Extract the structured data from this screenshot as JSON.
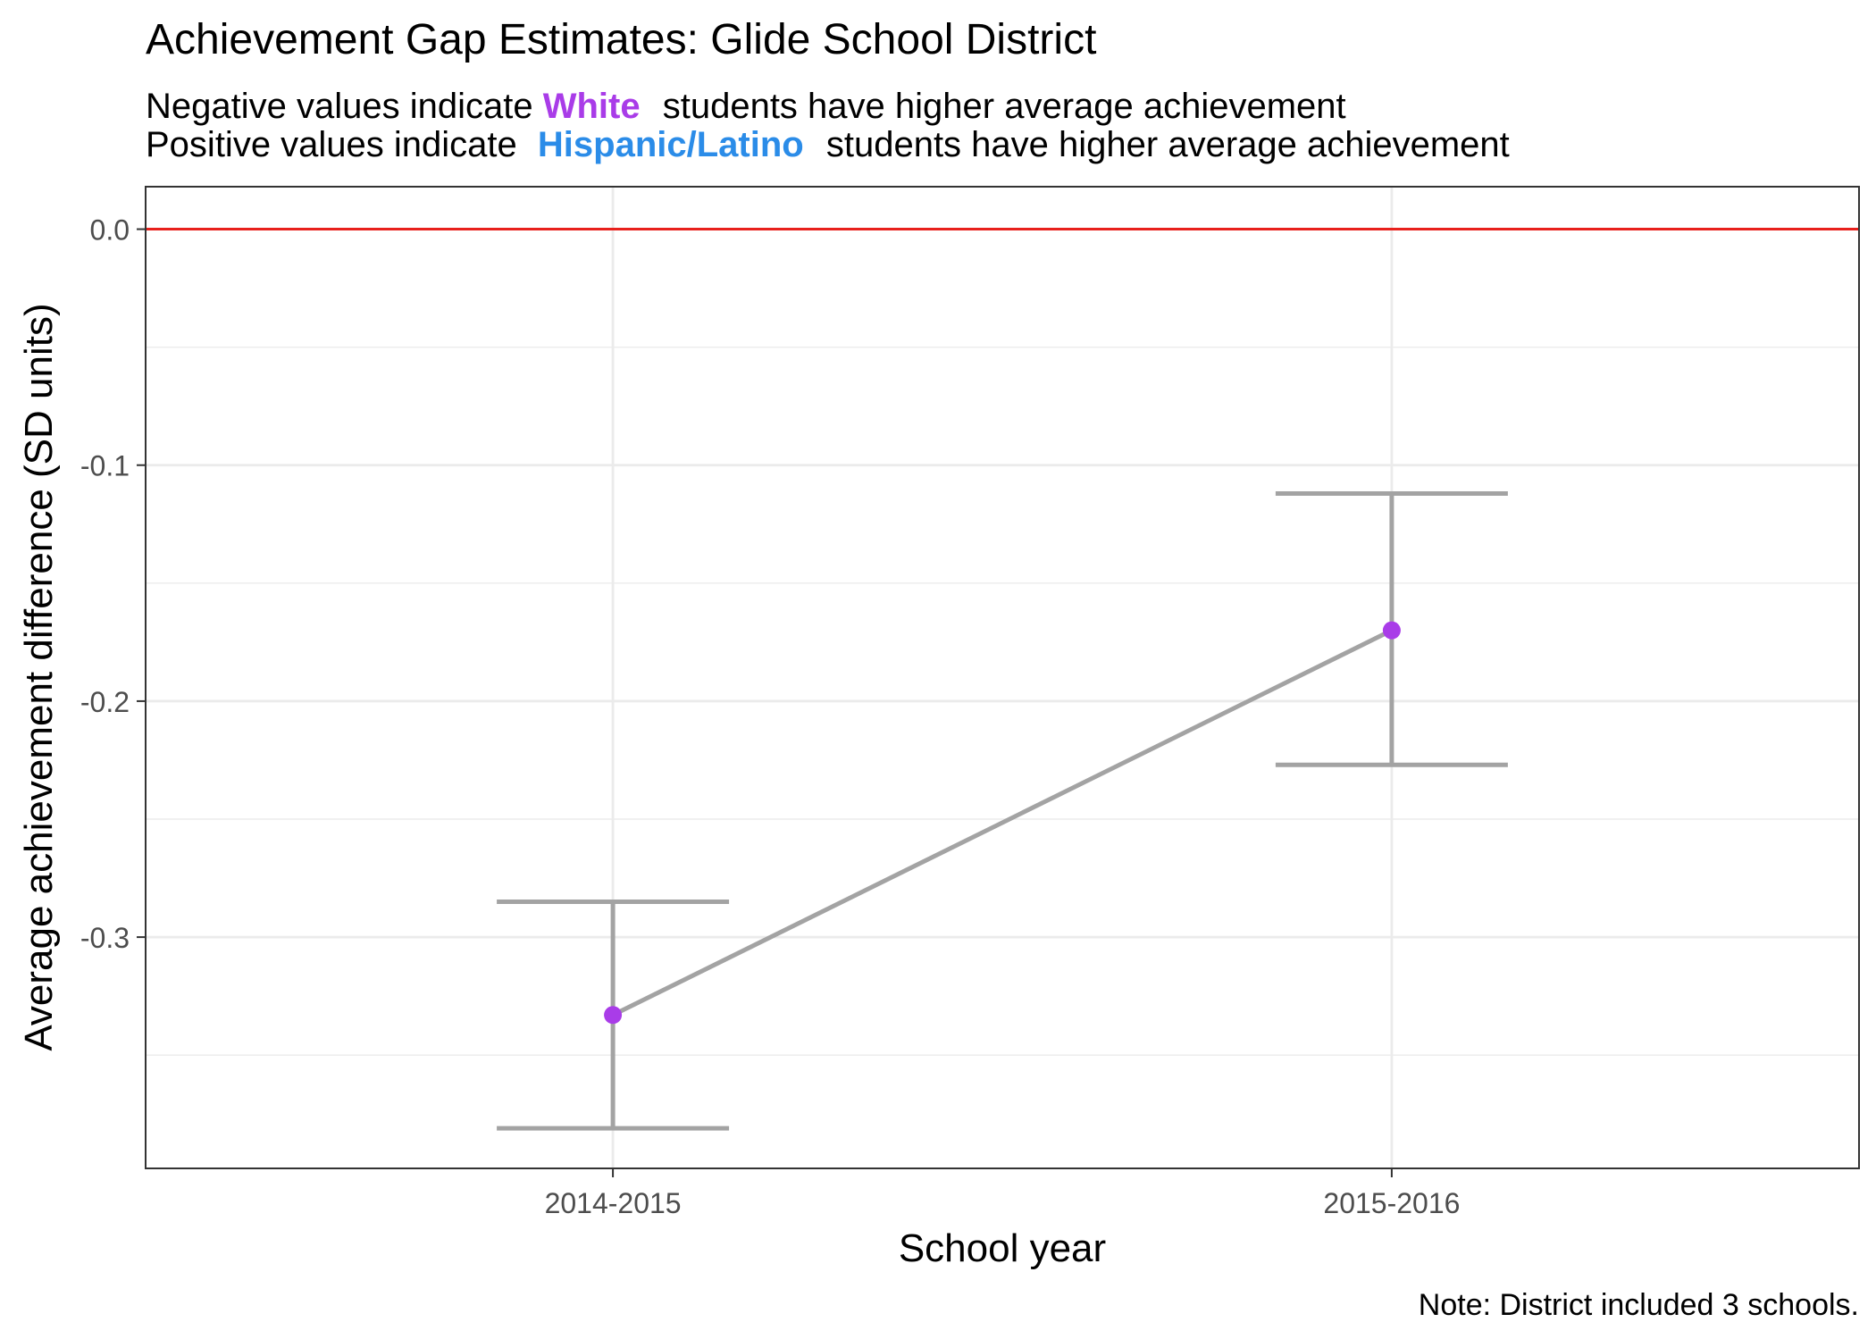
{
  "chart_data": {
    "type": "line",
    "title": "Achievement Gap Estimates: Glide School District",
    "subtitle_lines": [
      {
        "before": "Negative values indicate",
        "highlight": "White",
        "after": "students have higher average achievement",
        "highlight_color": "#a93ce8"
      },
      {
        "before": "Positive values indicate",
        "highlight": "Hispanic/Latino",
        "after": "students have higher average achievement",
        "highlight_color": "#2b8ce8"
      }
    ],
    "xlabel": "School year",
    "ylabel": "Average achievement difference (SD units)",
    "caption": "Note: District included 3 schools.",
    "categories": [
      "2014-2015",
      "2015-2016"
    ],
    "series": [
      {
        "values": [
          -0.333,
          -0.17
        ],
        "lower": [
          -0.381,
          -0.227
        ],
        "upper": [
          -0.285,
          -0.112
        ]
      }
    ],
    "ylim": [
      -0.398,
      0.018
    ],
    "y_ticks": [
      0.0,
      -0.1,
      -0.2,
      -0.3
    ],
    "y_tick_labels": [
      "0.0",
      "-0.1",
      "-0.2",
      "-0.3"
    ],
    "y_minor_ticks": [
      -0.05,
      -0.15,
      -0.25,
      -0.35
    ],
    "reference_line": {
      "y": 0,
      "color": "#e8201c"
    },
    "colors": {
      "point": "#a93ce8",
      "line": "#a3a3a3",
      "errorbar": "#a3a3a3",
      "grid": "#ebebeb",
      "panel_border": "#333333",
      "tick_label": "#4d4d4d"
    },
    "grid": true,
    "legend": "none"
  }
}
